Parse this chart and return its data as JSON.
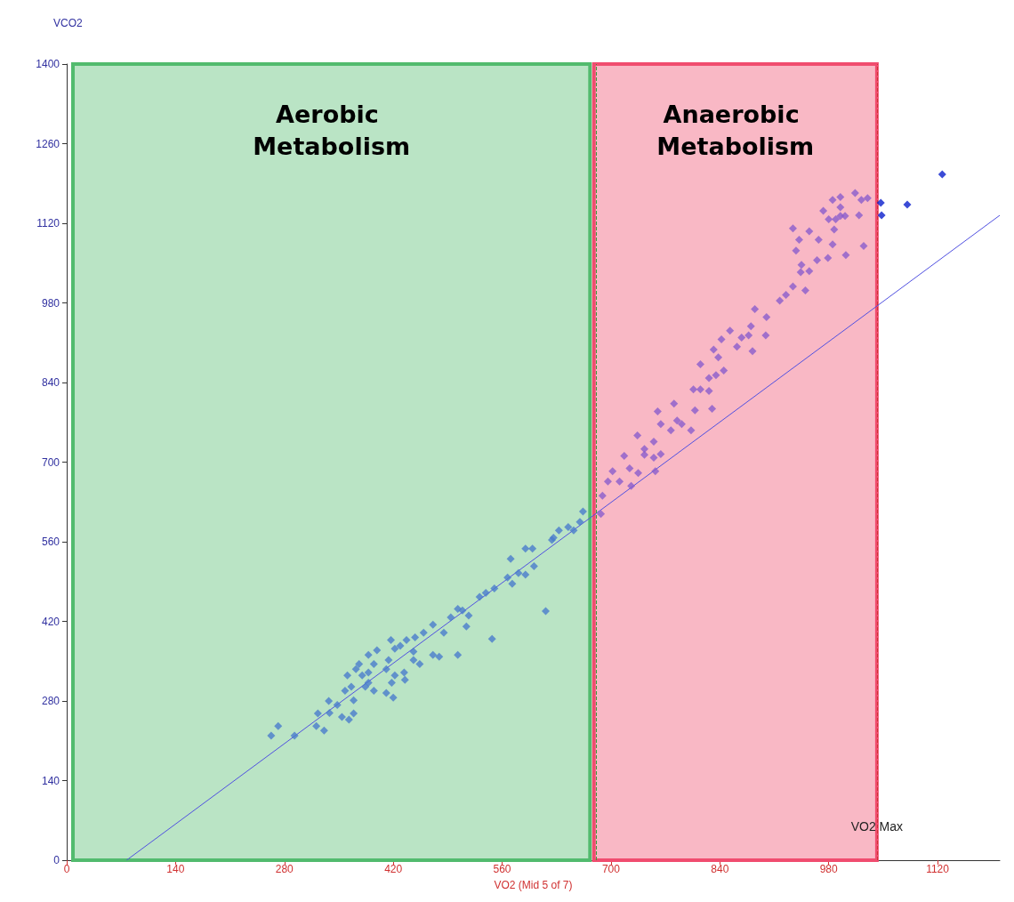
{
  "chart_data": {
    "type": "scatter",
    "xlabel": "VO2 (Mid 5 of 7)",
    "ylabel": "VCO2",
    "marker": "diamond",
    "xlim": [
      0,
      1200
    ],
    "xticks": [
      0,
      140,
      280,
      420,
      560,
      700,
      840,
      980,
      1120
    ],
    "ylim": [
      0,
      1400
    ],
    "yticks": [
      0,
      140,
      280,
      420,
      560,
      700,
      840,
      980,
      1120,
      1260,
      1400
    ],
    "series": [
      {
        "color": "#4a7ccc",
        "x": [
          263,
          272,
          293,
          321,
          331,
          323,
          337,
          338,
          348,
          354,
          363,
          369,
          369,
          358,
          366,
          361,
          372,
          380,
          388,
          376,
          395,
          384,
          395,
          388,
          399,
          388,
          411,
          420,
          418,
          411,
          414,
          422,
          434,
          435,
          417,
          422,
          429,
          437,
          448,
          459,
          471,
          446,
          446,
          454,
          471,
          479,
          485,
          494,
          503,
          509,
          517,
          514,
          503,
          531,
          539,
          550,
          547,
          567,
          573,
          571,
          581,
          590,
          601,
          590,
          599,
          616,
          624,
          626,
          633,
          645,
          652,
          660,
          664
        ],
        "values": [
          219,
          236,
          219,
          236,
          228,
          258,
          280,
          259,
          273,
          252,
          247,
          258,
          281,
          298,
          305,
          325,
          336,
          325,
          330,
          345,
          345,
          305,
          298,
          312,
          369,
          361,
          294,
          286,
          312,
          336,
          352,
          325,
          330,
          317,
          387,
          372,
          377,
          387,
          392,
          400,
          414,
          367,
          352,
          345,
          361,
          358,
          400,
          427,
          442,
          439,
          430,
          411,
          361,
          463,
          470,
          478,
          389,
          497,
          486,
          530,
          505,
          502,
          517,
          548,
          548,
          438,
          563,
          567,
          580,
          586,
          580,
          595,
          613
        ]
      },
      {
        "color": "#8a5ccc",
        "x": [
          689,
          687,
          702,
          696,
          711,
          717,
          726,
          724,
          735,
          734,
          743,
          743,
          755,
          755,
          757,
          764,
          760,
          764,
          777,
          781,
          785,
          791,
          803,
          808,
          806,
          815,
          815,
          826,
          830,
          826,
          835,
          845,
          832,
          838,
          842,
          853,
          862,
          868,
          877,
          882,
          880,
          885,
          899,
          900,
          917,
          925,
          934,
          950,
          944,
          945,
          955,
          965,
          938,
          942,
          955,
          967,
          934,
          979,
          985,
          1002,
          987,
          989,
          995,
          1001,
          973,
          980,
          995,
          985,
          995,
          1014,
          1022,
          1030,
          1019,
          1025
        ],
        "values": [
          641,
          609,
          684,
          666,
          666,
          711,
          658,
          689,
          681,
          747,
          713,
          723,
          736,
          708,
          684,
          714,
          789,
          767,
          756,
          803,
          773,
          767,
          756,
          791,
          828,
          828,
          872,
          825,
          794,
          848,
          853,
          861,
          898,
          884,
          916,
          931,
          903,
          919,
          923,
          895,
          939,
          969,
          923,
          955,
          984,
          994,
          1009,
          1002,
          1034,
          1047,
          1036,
          1055,
          1072,
          1091,
          1106,
          1091,
          1111,
          1059,
          1083,
          1064,
          1109,
          1127,
          1133,
          1133,
          1142,
          1127,
          1148,
          1161,
          1166,
          1173,
          1161,
          1164,
          1134,
          1080
        ]
      },
      {
        "color": "#0a1ecc",
        "x": [
          1047,
          1048,
          1081,
          1126
        ],
        "values": [
          1156,
          1134,
          1153,
          1206
        ]
      },
      {
        "type": "line",
        "marker": "none",
        "color": "#5050e0",
        "x": [
          77,
          1200
        ],
        "values": [
          0,
          1134
        ]
      }
    ],
    "bands": [
      {
        "axis": "x",
        "from": 8,
        "to": 673,
        "label": "Aerobic Metabolism",
        "color": "#52bb6e"
      },
      {
        "axis": "x",
        "from": 678,
        "to": 1042,
        "label": "Anaerobic Metabolism",
        "color": "#f04d6f"
      }
    ],
    "ref_lines": [
      {
        "axis": "x",
        "value": 681,
        "color": "#3a9a3a",
        "line_style": "dashed"
      },
      {
        "axis": "x",
        "value": 1042,
        "color": "#cc3333",
        "line_style": "dashed"
      }
    ],
    "annotations": [
      {
        "text": "VO2 Max",
        "x": 1042,
        "y": 60
      }
    ]
  }
}
